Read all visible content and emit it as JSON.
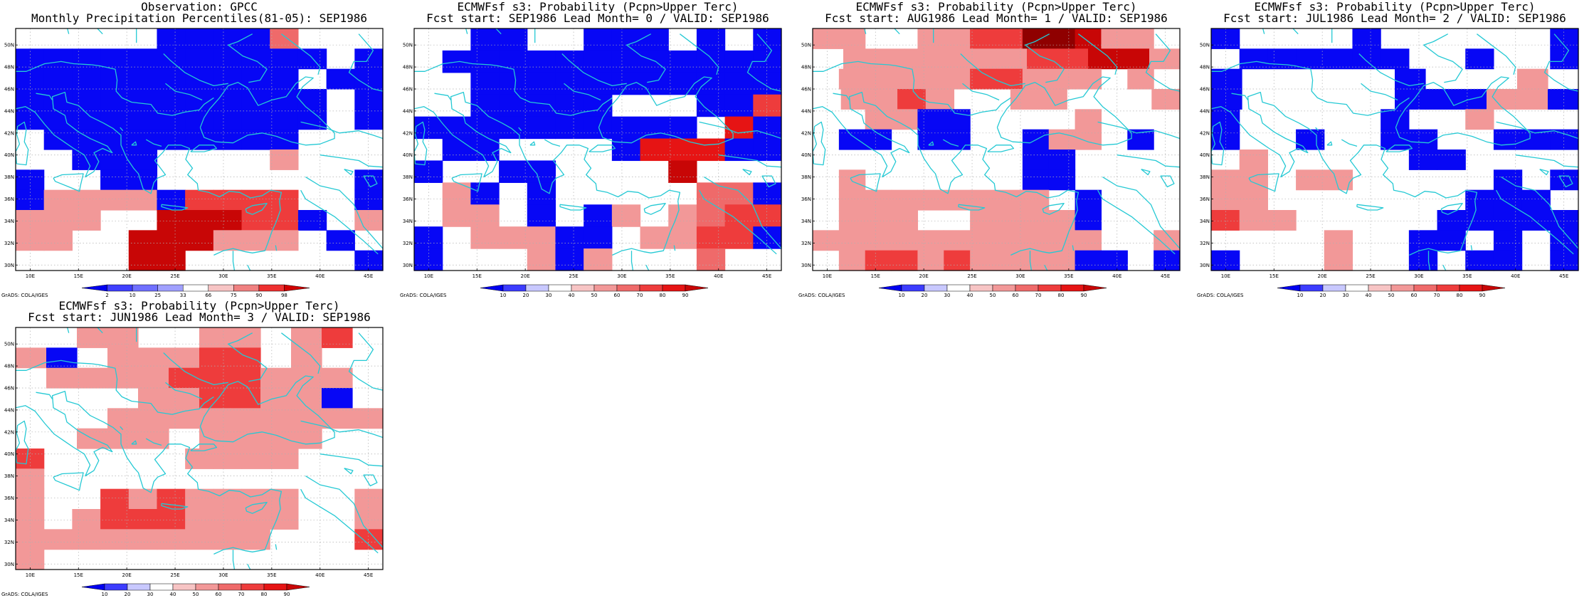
{
  "colors": {
    "coast": "#25c9d4",
    "grid": "#b0b0b0",
    "positive_ramp": [
      "#ffffff",
      "#f7c4c4",
      "#f29898",
      "#ef6a6a",
      "#ee3c3c",
      "#e61414",
      "#c80606",
      "#8f0000"
    ],
    "negative_ramp": [
      "#ffffff",
      "#c8c8ff",
      "#9a9aff",
      "#6c6cff",
      "#3d3dff",
      "#0707f5"
    ]
  },
  "lon_labels": [
    "10E",
    "15E",
    "20E",
    "25E",
    "30E",
    "35E",
    "40E",
    "45E"
  ],
  "lat_labels": [
    "30N",
    "32N",
    "34N",
    "36N",
    "38N",
    "40N",
    "42N",
    "44N",
    "46N",
    "48N",
    "50N"
  ],
  "credit": "GrADS: COLA/IGES",
  "panels": [
    {
      "title1": "Observation: GPCC",
      "title2": "Monthly Precipitation Percentiles(81-05): SEP1986",
      "colorbar_labels": [
        "2",
        "10",
        "25",
        "33",
        "66",
        "75",
        "90",
        "98"
      ],
      "grid": [
        "00000----3000",
        "-----------0-",
        "----------0--",
        "-----------0-",
        "-----------0-",
        "0---------000",
        "00---00002000",
        "-00--0000000-",
        "-2222-444400-",
        "2220066644-02",
        "22006662220-0",
        "000066000000-"
      ]
    },
    {
      "title1": "ECMWFsf s3: Probability (Pcpn>Upper Terc)",
      "title2": "Fcst start: SEP1986  Lead Month= 0 / VALID: SEP1986",
      "colorbar_labels": [
        "10",
        "20",
        "30",
        "40",
        "50",
        "60",
        "70",
        "80",
        "90"
      ],
      "grid": [
        "00--00---0-0-",
        "0------------",
        "00-----------",
        "00-----000--4",
        "----------05-",
        "0--0000-555--",
        "-00--00006000",
        "02-0-0000033-",
        "0220-0-202344",
        "-0222--02244-",
        "-0002-2000300"
      ]
    },
    {
      "title1": "ECMWFsf s3: Probability (Pcpn>Upper Terc)",
      "title2": "Fcst start: AUG1986  Lead Month= 1 / VALID: SEP1986",
      "colorbar_labels": [
        "10",
        "20",
        "30",
        "40",
        "50",
        "60",
        "70",
        "80",
        "90"
      ],
      "grid": [
        "22002244876220",
        "022222244662",
        "02222244222020",
        "0224200220002",
        "0022--00002000",
        "0--0--00-220-0",
        "00000000--0000",
        "02000000--0000",
        "0222222220-000",
        "0222002222-000",
        "22222222222002",
        "0244242222--0-"
      ]
    },
    {
      "title1": "ECMWFsf s3: Probability (Pcpn>Upper Terc)",
      "title2": "Fcst start: JUL1986  Lead Month= 2 / VALID: SEP1986",
      "colorbar_labels": [
        "10",
        "20",
        "30",
        "40",
        "50",
        "60",
        "70",
        "80",
        "90"
      ],
      "grid": [
        "-0000-000000-",
        "0------00-00-",
        "-00000-00020",
        "-00000---22-",
        "-00000-002000",
        "-00-00--00---",
        "0200000--0000",
        "2202200000-0-",
        "220000000---0",
        "42200000-----",
        "0000200--0-0-",
        "-000200-0--0-"
      ]
    },
    {
      "title1": "ECMWFsf s3: Probability (Pcpn>Upper Terc)",
      "title2": "Fcst start: JUN1986  Lead Month= 3 / VALID: SEP1986",
      "colorbar_labels": [
        "10",
        "20",
        "30",
        "40",
        "50",
        "60",
        "70",
        "80",
        "90"
      ],
      "grid": [
        "002200220240",
        "2-0222440200",
        "022224442220",
        "0000224422-0",
        "000222222222",
        "002220222200",
        "4000002222000",
        "2000000000000",
        "2004242222002",
        "2024442222002",
        "2222222220004",
        "2000000000000"
      ]
    }
  ]
}
